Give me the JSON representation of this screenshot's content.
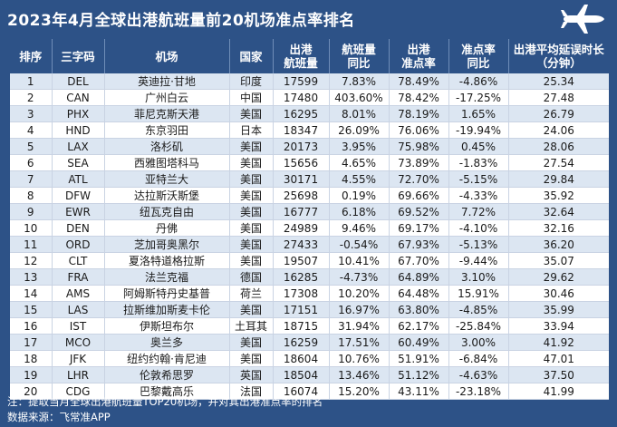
{
  "header": {
    "title": "2023年4月全球出港航班量前20机场准点率排名",
    "icon": "airplane-icon"
  },
  "table": {
    "columns": [
      "排序",
      "三字码",
      "机场",
      "国家",
      [
        "出港",
        "航班量"
      ],
      [
        "航班量",
        "同比"
      ],
      [
        "出港",
        "准点率"
      ],
      [
        "准点率",
        "同比"
      ],
      [
        "出港平均延误时长",
        "（分钟）"
      ]
    ],
    "rows": [
      [
        "1",
        "DEL",
        "英迪拉·甘地",
        "印度",
        "17599",
        "7.83%",
        "78.49%",
        "-4.86%",
        "25.34"
      ],
      [
        "2",
        "CAN",
        "广州白云",
        "中国",
        "17480",
        "403.60%",
        "78.42%",
        "-17.25%",
        "27.48"
      ],
      [
        "3",
        "PHX",
        "菲尼克斯天港",
        "美国",
        "16295",
        "8.01%",
        "78.19%",
        "1.65%",
        "26.79"
      ],
      [
        "4",
        "HND",
        "东京羽田",
        "日本",
        "18347",
        "26.09%",
        "76.06%",
        "-19.94%",
        "24.06"
      ],
      [
        "5",
        "LAX",
        "洛杉矶",
        "美国",
        "20173",
        "3.95%",
        "75.98%",
        "0.45%",
        "28.06"
      ],
      [
        "6",
        "SEA",
        "西雅图塔科马",
        "美国",
        "15656",
        "4.65%",
        "73.89%",
        "-1.83%",
        "27.54"
      ],
      [
        "7",
        "ATL",
        "亚特兰大",
        "美国",
        "30171",
        "4.55%",
        "72.70%",
        "-5.15%",
        "29.84"
      ],
      [
        "8",
        "DFW",
        "达拉斯沃斯堡",
        "美国",
        "25698",
        "0.19%",
        "69.66%",
        "-4.33%",
        "35.92"
      ],
      [
        "9",
        "EWR",
        "纽瓦克自由",
        "美国",
        "16777",
        "6.18%",
        "69.52%",
        "7.72%",
        "32.64"
      ],
      [
        "10",
        "DEN",
        "丹佛",
        "美国",
        "24989",
        "9.46%",
        "69.17%",
        "-4.10%",
        "32.16"
      ],
      [
        "11",
        "ORD",
        "芝加哥奥黑尔",
        "美国",
        "27433",
        "-0.54%",
        "67.93%",
        "-5.13%",
        "36.20"
      ],
      [
        "12",
        "CLT",
        "夏洛特道格拉斯",
        "美国",
        "19507",
        "10.41%",
        "67.70%",
        "-9.44%",
        "35.07"
      ],
      [
        "13",
        "FRA",
        "法兰克福",
        "德国",
        "16285",
        "-4.73%",
        "64.89%",
        "3.10%",
        "29.62"
      ],
      [
        "14",
        "AMS",
        "阿姆斯特丹史基普",
        "荷兰",
        "17308",
        "10.20%",
        "64.48%",
        "15.91%",
        "30.46"
      ],
      [
        "15",
        "LAS",
        "拉斯维加斯麦卡伦",
        "美国",
        "17151",
        "16.97%",
        "63.80%",
        "-4.85%",
        "35.99"
      ],
      [
        "16",
        "IST",
        "伊斯坦布尔",
        "土耳其",
        "18715",
        "31.94%",
        "62.17%",
        "-25.84%",
        "33.94"
      ],
      [
        "17",
        "MCO",
        "奥兰多",
        "美国",
        "16259",
        "17.51%",
        "60.49%",
        "3.00%",
        "41.92"
      ],
      [
        "18",
        "JFK",
        "纽约约翰·肯尼迪",
        "美国",
        "18604",
        "10.76%",
        "51.91%",
        "-6.84%",
        "47.01"
      ],
      [
        "19",
        "LHR",
        "伦敦希思罗",
        "英国",
        "18504",
        "13.46%",
        "51.12%",
        "-4.63%",
        "37.50"
      ],
      [
        "20",
        "CDG",
        "巴黎戴高乐",
        "法国",
        "16074",
        "15.20%",
        "43.11%",
        "-23.18%",
        "41.99"
      ]
    ]
  },
  "footer": {
    "note": "注：提取当月全球出港航班量TOP20机场，并对其出港准点率的排名",
    "source": "数据来源：飞常准APP"
  },
  "colors": {
    "background": "#2d5287",
    "row_stripe": "#dce6f2",
    "row_plain": "#ffffff"
  },
  "chart_data": {
    "type": "table",
    "title": "2023年4月全球出港航班量前20机场准点率排名",
    "columns": [
      "排序",
      "三字码",
      "机场",
      "国家",
      "出港航班量",
      "航班量同比",
      "出港准点率",
      "准点率同比",
      "出港平均延误时长（分钟）"
    ],
    "rows": [
      [
        1,
        "DEL",
        "英迪拉·甘地",
        "印度",
        17599,
        "7.83%",
        "78.49%",
        "-4.86%",
        25.34
      ],
      [
        2,
        "CAN",
        "广州白云",
        "中国",
        17480,
        "403.60%",
        "78.42%",
        "-17.25%",
        27.48
      ],
      [
        3,
        "PHX",
        "菲尼克斯天港",
        "美国",
        16295,
        "8.01%",
        "78.19%",
        "1.65%",
        26.79
      ],
      [
        4,
        "HND",
        "东京羽田",
        "日本",
        18347,
        "26.09%",
        "76.06%",
        "-19.94%",
        24.06
      ],
      [
        5,
        "LAX",
        "洛杉矶",
        "美国",
        20173,
        "3.95%",
        "75.98%",
        "0.45%",
        28.06
      ],
      [
        6,
        "SEA",
        "西雅图塔科马",
        "美国",
        15656,
        "4.65%",
        "73.89%",
        "-1.83%",
        27.54
      ],
      [
        7,
        "ATL",
        "亚特兰大",
        "美国",
        30171,
        "4.55%",
        "72.70%",
        "-5.15%",
        29.84
      ],
      [
        8,
        "DFW",
        "达拉斯沃斯堡",
        "美国",
        25698,
        "0.19%",
        "69.66%",
        "-4.33%",
        35.92
      ],
      [
        9,
        "EWR",
        "纽瓦克自由",
        "美国",
        16777,
        "6.18%",
        "69.52%",
        "7.72%",
        32.64
      ],
      [
        10,
        "DEN",
        "丹佛",
        "美国",
        24989,
        "9.46%",
        "69.17%",
        "-4.10%",
        32.16
      ],
      [
        11,
        "ORD",
        "芝加哥奥黑尔",
        "美国",
        27433,
        "-0.54%",
        "67.93%",
        "-5.13%",
        36.2
      ],
      [
        12,
        "CLT",
        "夏洛特道格拉斯",
        "美国",
        19507,
        "10.41%",
        "67.70%",
        "-9.44%",
        35.07
      ],
      [
        13,
        "FRA",
        "法兰克福",
        "德国",
        16285,
        "-4.73%",
        "64.89%",
        "3.10%",
        29.62
      ],
      [
        14,
        "AMS",
        "阿姆斯特丹史基普",
        "荷兰",
        17308,
        "10.20%",
        "64.48%",
        "15.91%",
        30.46
      ],
      [
        15,
        "LAS",
        "拉斯维加斯麦卡伦",
        "美国",
        17151,
        "16.97%",
        "63.80%",
        "-4.85%",
        35.99
      ],
      [
        16,
        "IST",
        "伊斯坦布尔",
        "土耳其",
        18715,
        "31.94%",
        "62.17%",
        "-25.84%",
        33.94
      ],
      [
        17,
        "MCO",
        "奥兰多",
        "美国",
        16259,
        "17.51%",
        "60.49%",
        "3.00%",
        41.92
      ],
      [
        18,
        "JFK",
        "纽约约翰·肯尼迪",
        "美国",
        18604,
        "10.76%",
        "51.91%",
        "-6.84%",
        47.01
      ],
      [
        19,
        "LHR",
        "伦敦希思罗",
        "英国",
        18504,
        "13.46%",
        "51.12%",
        "-4.63%",
        37.5
      ],
      [
        20,
        "CDG",
        "巴黎戴高乐",
        "法国",
        16074,
        "15.20%",
        "43.11%",
        "-23.18%",
        41.99
      ]
    ]
  }
}
